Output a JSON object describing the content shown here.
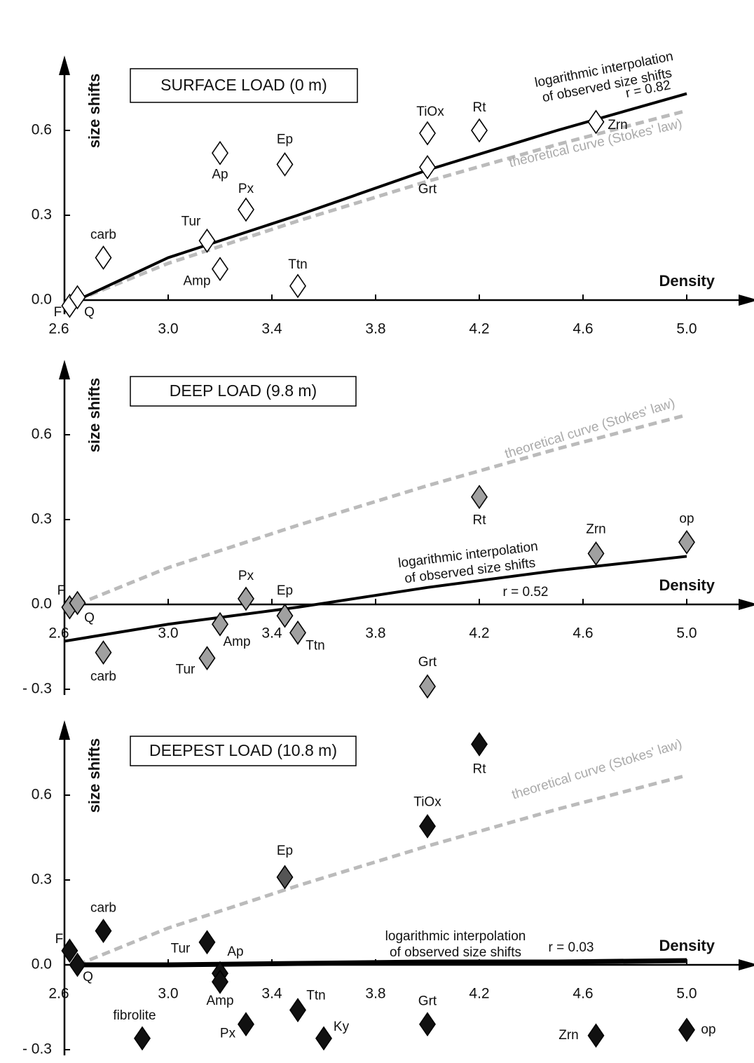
{
  "chart_data": [
    {
      "type": "scatter",
      "title": "SURFACE LOAD (0 m)",
      "ylabel": "size shifts",
      "xlabel": "Density",
      "xlim": [
        2.6,
        5.2
      ],
      "xticks": [
        {
          "value": 2.6,
          "label": "2.6"
        },
        {
          "value": 3.0,
          "label": "3.0"
        },
        3.4,
        3.8,
        4.2,
        4.6,
        {
          "value": 5.0,
          "label": "5.0"
        }
      ],
      "ylim": [
        -0.05,
        0.85
      ],
      "yticks": [
        {
          "value": 0,
          "label": "0.0"
        },
        0.3,
        0.6
      ],
      "points": {
        "color": "#ffffff",
        "labels": [
          "F",
          "Q",
          "carb",
          "Tur",
          "Amp",
          "Ap",
          "Px",
          "Ep",
          "Ttn",
          "TiOx",
          "Grt",
          "Rt",
          "Zrn"
        ],
        "x": [
          2.62,
          2.65,
          2.75,
          3.15,
          3.2,
          3.2,
          3.3,
          3.45,
          3.5,
          4.0,
          4.0,
          4.2,
          4.65
        ],
        "values": [
          -0.02,
          0.01,
          0.15,
          0.21,
          0.11,
          0.52,
          0.32,
          0.48,
          0.05,
          0.59,
          0.47,
          0.6,
          0.63
        ]
      },
      "curves": [
        {
          "label": [
            "theoretical curve (Stokes' law)"
          ],
          "color": "#bbbbbb",
          "dash": true,
          "width": 5,
          "x": [
            2.65,
            3.0,
            3.5,
            4.0,
            4.5,
            5.0
          ],
          "values": [
            0,
            0.13,
            0.28,
            0.42,
            0.55,
            0.67
          ]
        },
        {
          "label": [
            "logarithmic interpolation",
            "of observed size shifts"
          ],
          "annotation": "r = 0.82",
          "color": "#000000",
          "dash": false,
          "width": 4,
          "x": [
            2.65,
            3.0,
            3.5,
            4.0,
            4.5,
            5.0
          ],
          "values": [
            0,
            0.15,
            0.3,
            0.46,
            0.6,
            0.73
          ]
        }
      ]
    },
    {
      "type": "scatter",
      "title": "DEEP LOAD (9.8 m)",
      "ylabel": "size shifts",
      "xlabel": "Density",
      "xlim": [
        2.6,
        5.2
      ],
      "xticks": [
        {
          "value": 2.6,
          "label": "2.6"
        },
        {
          "value": 3.0,
          "label": "3.0"
        },
        3.4,
        3.8,
        4.2,
        4.6,
        {
          "value": 5.0,
          "label": "5.0"
        }
      ],
      "ylim": [
        -0.32,
        0.85
      ],
      "yticks": [
        {
          "value": -0.3,
          "label": "- 0.3"
        },
        {
          "value": 0,
          "label": "0.0"
        },
        0.3,
        0.6
      ],
      "points": {
        "color": "#a0a0a0",
        "labels": [
          "F",
          "Q",
          "carb",
          "Tur",
          "Amp",
          "Px",
          "Ep",
          "Ttn",
          "Grt",
          "Rt",
          "Zrn",
          "op"
        ],
        "x": [
          2.62,
          2.65,
          2.75,
          3.15,
          3.2,
          3.3,
          3.45,
          3.5,
          4.0,
          4.2,
          4.65,
          5.0
        ],
        "values": [
          -0.01,
          0.005,
          -0.17,
          -0.19,
          -0.07,
          0.02,
          -0.04,
          -0.1,
          -0.29,
          0.38,
          0.18,
          0.22
        ]
      },
      "curves": [
        {
          "label": [
            "theoretical curve (Stokes' law)"
          ],
          "color": "#bbbbbb",
          "dash": true,
          "width": 5,
          "x": [
            2.65,
            3.0,
            3.5,
            4.0,
            4.5,
            5.0
          ],
          "values": [
            0,
            0.13,
            0.28,
            0.42,
            0.55,
            0.67
          ]
        },
        {
          "label": [
            "logarithmic interpolation",
            "of observed size shifts"
          ],
          "annotation": "r = 0.52",
          "color": "#000000",
          "dash": false,
          "width": 4,
          "x": [
            2.6,
            3.0,
            3.5,
            4.0,
            4.5,
            5.0
          ],
          "values": [
            -0.13,
            -0.07,
            -0.01,
            0.06,
            0.12,
            0.17
          ]
        }
      ]
    },
    {
      "type": "scatter",
      "title": "DEEPEST LOAD (10.8 m)",
      "ylabel": "size shifts",
      "xlabel": "Density",
      "xlim": [
        2.6,
        5.2
      ],
      "xticks": [
        {
          "value": 2.6,
          "label": "2.6"
        },
        {
          "value": 3.0,
          "label": "3.0"
        },
        3.4,
        3.8,
        4.2,
        4.6,
        {
          "value": 5.0,
          "label": "5.0"
        }
      ],
      "ylim": [
        -0.32,
        0.85
      ],
      "yticks": [
        {
          "value": -0.3,
          "label": "- 0.3"
        },
        {
          "value": 0,
          "label": "0.0"
        },
        0.3,
        0.6
      ],
      "points": {
        "color": "#111111",
        "colors": [
          "#111111",
          "#111111",
          "#111111",
          "#111111",
          "#111111",
          "#111111",
          "#111111",
          "#111111",
          "#111111",
          "#111111",
          "#555555",
          "#111111",
          "#111111",
          "#111111",
          "#111111",
          "#111111"
        ],
        "labels": [
          "F",
          "Q",
          "carb",
          "Tur",
          "Ap",
          "Amp",
          "fibrolite",
          "Px",
          "Ttn",
          "Ky",
          "Ep",
          "TiOx",
          "Grt",
          "Rt",
          "Zrn",
          "op"
        ],
        "x": [
          2.62,
          2.65,
          2.75,
          3.15,
          3.2,
          3.2,
          2.9,
          3.3,
          3.5,
          3.6,
          3.45,
          4.0,
          4.0,
          4.2,
          4.65,
          5.0
        ],
        "values": [
          0.05,
          0.0,
          0.12,
          0.08,
          -0.03,
          -0.06,
          -0.26,
          -0.21,
          -0.16,
          -0.26,
          0.31,
          0.49,
          -0.21,
          0.78,
          -0.25,
          -0.23
        ]
      },
      "curves": [
        {
          "label": [
            "theoretical curve (Stokes' law)"
          ],
          "color": "#bbbbbb",
          "dash": true,
          "width": 5,
          "x": [
            2.65,
            3.0,
            3.5,
            4.0,
            4.5,
            5.0
          ],
          "values": [
            0,
            0.13,
            0.28,
            0.42,
            0.55,
            0.67
          ]
        },
        {
          "label": [
            "logarithmic interpolation",
            "of observed size shifts"
          ],
          "annotation": "r = 0.03",
          "color": "#000000",
          "dash": false,
          "width": 7,
          "x": [
            2.65,
            3.0,
            3.5,
            4.0,
            4.5,
            5.0
          ],
          "values": [
            0,
            0.0,
            0.005,
            0.01,
            0.01,
            0.015
          ]
        }
      ]
    }
  ]
}
